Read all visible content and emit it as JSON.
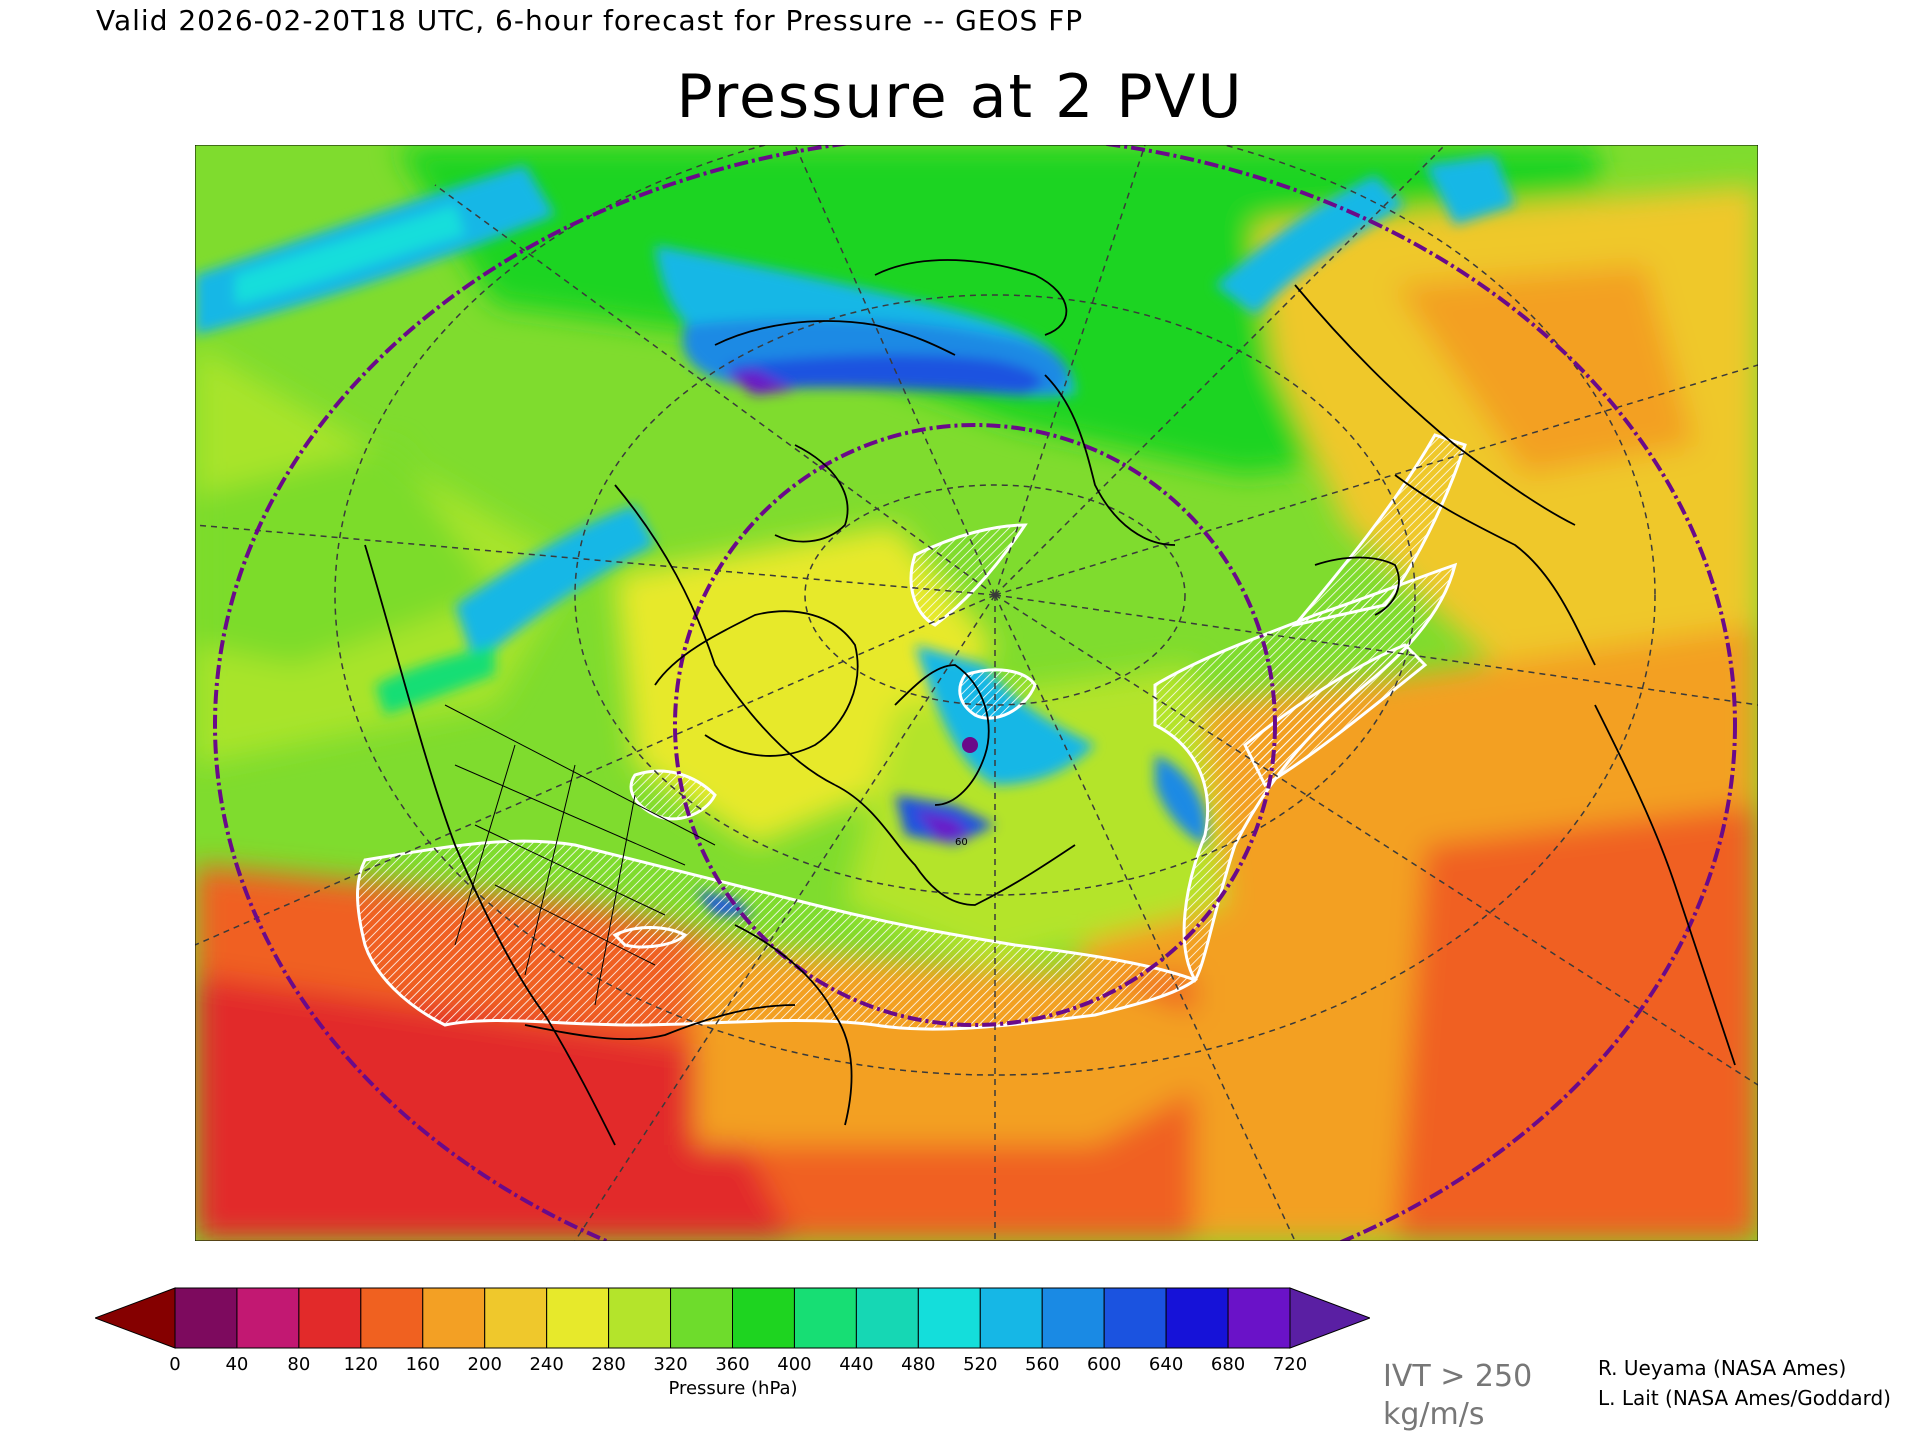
{
  "header": {
    "valid_line": "Valid 2026-02-20T18 UTC, 6-hour forecast for Pressure -- GEOS FP",
    "title": "Pressure at 2 PVU"
  },
  "map": {
    "projection": "north-polar-stereographic",
    "region": "North America, North Atlantic, Europe, Arctic",
    "contour_label": "60",
    "hatched_overlay": "IVT > 250 kg/m/s",
    "colors": {
      "ocean_hatch": "#ffffff",
      "coast": "#000000",
      "circle": "#6a0a8a",
      "grid": "#3a3a3a"
    }
  },
  "colorbar": {
    "label": "Pressure (hPa)",
    "ticks": [
      "0",
      "40",
      "80",
      "120",
      "160",
      "200",
      "240",
      "280",
      "320",
      "360",
      "400",
      "440",
      "480",
      "520",
      "560",
      "600",
      "640",
      "680",
      "720"
    ],
    "under_color": "#850000",
    "over_color": "#5a1fa3",
    "colors": [
      "#7d0a5e",
      "#c21872",
      "#e22a2a",
      "#f06120",
      "#f3a024",
      "#efc82c",
      "#e7e92b",
      "#b4e42b",
      "#6edc2c",
      "#1ed420",
      "#17de74",
      "#16d7b4",
      "#14dedb",
      "#16b7e6",
      "#1a8ae4",
      "#1b53e0",
      "#1612d8",
      "#6a12c8"
    ]
  },
  "legend": {
    "ivt_line1": "IVT > 250",
    "ivt_line2": "kg/m/s"
  },
  "credits": {
    "line1": "R. Ueyama (NASA Ames)",
    "line2": "L. Lait (NASA Ames/Goddard)"
  }
}
